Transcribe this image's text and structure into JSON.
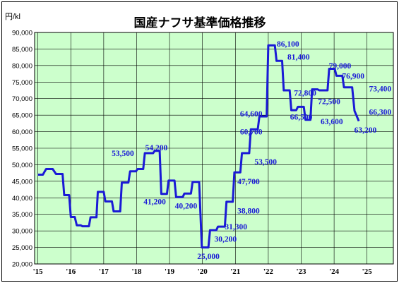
{
  "chart_data": {
    "type": "line",
    "title": "国産ナフサ基準価格推移",
    "unit_label": "円/kl",
    "ylim": [
      20000,
      90000
    ],
    "y_ticks": [
      "20,000",
      "25,000",
      "30,000",
      "35,000",
      "40,000",
      "45,000",
      "50,000",
      "55,000",
      "60,000",
      "65,000",
      "70,000",
      "75,000",
      "80,000",
      "85,000",
      "90,000"
    ],
    "x_ticks": [
      {
        "label": "'15",
        "year": 2015
      },
      {
        "label": "'16",
        "year": 2016
      },
      {
        "label": "'17",
        "year": 2017
      },
      {
        "label": "'18",
        "year": 2018
      },
      {
        "label": "'19",
        "year": 2019
      },
      {
        "label": "'20",
        "year": 2020
      },
      {
        "label": "'21",
        "year": 2021
      },
      {
        "label": "'22",
        "year": 2022
      },
      {
        "label": "'23",
        "year": 2023
      },
      {
        "label": "'24",
        "year": 2024
      },
      {
        "label": "'25",
        "year": 2025
      }
    ],
    "grid": true,
    "plot_background": "#ccffcc",
    "line_color": "#1a1ad6",
    "series": [
      {
        "points": [
          {
            "year": 2015.0,
            "y": 47000
          },
          {
            "year": 2015.15,
            "y": 47000
          },
          {
            "year": 2015.25,
            "y": 48700
          },
          {
            "year": 2015.45,
            "y": 48700
          },
          {
            "year": 2015.55,
            "y": 47200
          },
          {
            "year": 2015.75,
            "y": 47200
          },
          {
            "year": 2015.8,
            "y": 40800
          },
          {
            "year": 2015.95,
            "y": 40800
          },
          {
            "year": 2016.0,
            "y": 34200
          },
          {
            "year": 2016.12,
            "y": 34200
          },
          {
            "year": 2016.18,
            "y": 31700
          },
          {
            "year": 2016.3,
            "y": 31700
          },
          {
            "year": 2016.35,
            "y": 31400
          },
          {
            "year": 2016.55,
            "y": 31400
          },
          {
            "year": 2016.6,
            "y": 34100
          },
          {
            "year": 2016.78,
            "y": 34100
          },
          {
            "year": 2016.82,
            "y": 41800
          },
          {
            "year": 2017.0,
            "y": 41800
          },
          {
            "year": 2017.05,
            "y": 38900
          },
          {
            "year": 2017.25,
            "y": 38900
          },
          {
            "year": 2017.3,
            "y": 35900
          },
          {
            "year": 2017.5,
            "y": 35900
          },
          {
            "year": 2017.55,
            "y": 44600
          },
          {
            "year": 2017.75,
            "y": 44600
          },
          {
            "year": 2017.8,
            "y": 48000
          },
          {
            "year": 2017.98,
            "y": 48000
          },
          {
            "year": 2018.03,
            "y": 48700
          },
          {
            "year": 2018.2,
            "y": 48700
          },
          {
            "year": 2018.25,
            "y": 53500
          },
          {
            "year": 2018.5,
            "y": 53500
          },
          {
            "year": 2018.55,
            "y": 54200
          },
          {
            "year": 2018.7,
            "y": 54200
          },
          {
            "year": 2018.75,
            "y": 41200
          },
          {
            "year": 2018.92,
            "y": 41200
          },
          {
            "year": 2018.97,
            "y": 45200
          },
          {
            "year": 2019.15,
            "y": 45200
          },
          {
            "year": 2019.2,
            "y": 40200
          },
          {
            "year": 2019.4,
            "y": 40200
          },
          {
            "year": 2019.45,
            "y": 41300
          },
          {
            "year": 2019.65,
            "y": 41300
          },
          {
            "year": 2019.7,
            "y": 44800
          },
          {
            "year": 2019.9,
            "y": 44800
          },
          {
            "year": 2019.98,
            "y": 25000
          },
          {
            "year": 2020.18,
            "y": 25000
          },
          {
            "year": 2020.23,
            "y": 30200
          },
          {
            "year": 2020.42,
            "y": 30200
          },
          {
            "year": 2020.47,
            "y": 31300
          },
          {
            "year": 2020.68,
            "y": 31300
          },
          {
            "year": 2020.73,
            "y": 38800
          },
          {
            "year": 2020.92,
            "y": 38800
          },
          {
            "year": 2020.97,
            "y": 47700
          },
          {
            "year": 2021.15,
            "y": 47700
          },
          {
            "year": 2021.2,
            "y": 53500
          },
          {
            "year": 2021.42,
            "y": 53500
          },
          {
            "year": 2021.47,
            "y": 60700
          },
          {
            "year": 2021.68,
            "y": 60700
          },
          {
            "year": 2021.73,
            "y": 64600
          },
          {
            "year": 2021.95,
            "y": 64600
          },
          {
            "year": 2022.0,
            "y": 86100
          },
          {
            "year": 2022.2,
            "y": 86100
          },
          {
            "year": 2022.25,
            "y": 81400
          },
          {
            "year": 2022.42,
            "y": 81400
          },
          {
            "year": 2022.47,
            "y": 72500
          },
          {
            "year": 2022.65,
            "y": 72500
          },
          {
            "year": 2022.7,
            "y": 66500
          },
          {
            "year": 2022.85,
            "y": 66500
          },
          {
            "year": 2022.9,
            "y": 67500
          },
          {
            "year": 2023.08,
            "y": 67500
          },
          {
            "year": 2023.13,
            "y": 63600
          },
          {
            "year": 2023.28,
            "y": 63600
          },
          {
            "year": 2023.33,
            "y": 72800
          },
          {
            "year": 2023.5,
            "y": 72800
          },
          {
            "year": 2023.55,
            "y": 72500
          },
          {
            "year": 2023.8,
            "y": 72500
          },
          {
            "year": 2023.85,
            "y": 79000
          },
          {
            "year": 2024.02,
            "y": 79000
          },
          {
            "year": 2024.07,
            "y": 76900
          },
          {
            "year": 2024.25,
            "y": 76900
          },
          {
            "year": 2024.3,
            "y": 73400
          },
          {
            "year": 2024.55,
            "y": 73400
          },
          {
            "year": 2024.62,
            "y": 66300
          },
          {
            "year": 2024.75,
            "y": 63200
          }
        ]
      }
    ],
    "annotations": [
      {
        "text": "53,500",
        "year": 2017.58,
        "y": 53500
      },
      {
        "text": "54,200",
        "year": 2018.6,
        "y": 55200
      },
      {
        "text": "41,200",
        "year": 2018.55,
        "y": 38900
      },
      {
        "text": "40,200",
        "year": 2019.5,
        "y": 37600
      },
      {
        "text": "25,000",
        "year": 2020.18,
        "y": 22400
      },
      {
        "text": "30,200",
        "year": 2020.7,
        "y": 27600
      },
      {
        "text": "31,300",
        "year": 2021.02,
        "y": 31300
      },
      {
        "text": "38,800",
        "year": 2021.4,
        "y": 36100
      },
      {
        "text": "47,700",
        "year": 2021.4,
        "y": 45000
      },
      {
        "text": "53,500",
        "year": 2021.92,
        "y": 50900
      },
      {
        "text": "60,700",
        "year": 2021.48,
        "y": 60000
      },
      {
        "text": "64,600",
        "year": 2021.48,
        "y": 65500
      },
      {
        "text": "86,100",
        "year": 2022.6,
        "y": 86600
      },
      {
        "text": "81,400",
        "year": 2022.92,
        "y": 82600
      },
      {
        "text": "72,800",
        "year": 2023.12,
        "y": 71800
      },
      {
        "text": "72,500",
        "year": 2023.85,
        "y": 69200
      },
      {
        "text": "66,500",
        "year": 2023.0,
        "y": 64500
      },
      {
        "text": "63,600",
        "year": 2023.93,
        "y": 63100
      },
      {
        "text": "79,000",
        "year": 2024.18,
        "y": 80000
      },
      {
        "text": "76,900",
        "year": 2024.58,
        "y": 76900
      },
      {
        "text": "73,400",
        "year": 2025.4,
        "y": 73000
      },
      {
        "text": "66,300",
        "year": 2025.4,
        "y": 66000
      },
      {
        "text": "63,200",
        "year": 2024.95,
        "y": 60600
      }
    ]
  }
}
